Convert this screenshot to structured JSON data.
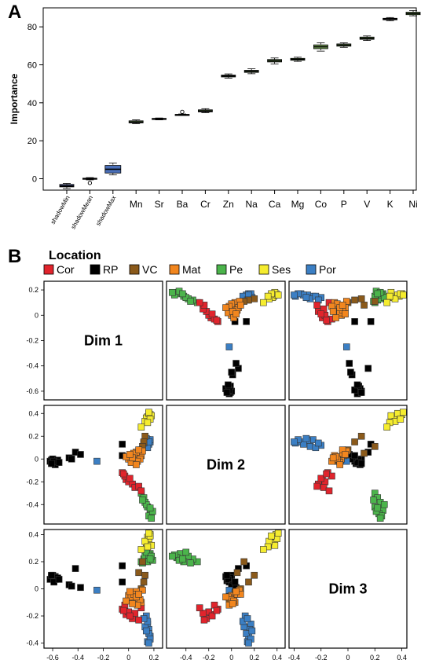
{
  "panel_a_label": "A",
  "panel_b_label": "B",
  "chart_data": [
    {
      "type": "box",
      "ylabel": "Importance",
      "ylim": [
        -6,
        90
      ],
      "yticks": [
        0,
        20,
        40,
        60,
        80
      ],
      "categories": [
        "shadowMin",
        "shadowMean",
        "shadowMax",
        "Mn",
        "Sr",
        "Ba",
        "Cr",
        "Zn",
        "Na",
        "Ca",
        "Mg",
        "Co",
        "P",
        "V",
        "K",
        "Ni"
      ],
      "series": [
        {
          "values": [
            {
              "min": -5.2,
              "q1": -4.3,
              "median": -3.8,
              "q3": -3.0,
              "max": -2.5,
              "color": "#4a5a9a"
            },
            {
              "min": -0.6,
              "q1": -0.3,
              "median": 0.0,
              "q3": 0.3,
              "max": 0.6,
              "color": "#4a5a9a",
              "outliers": [
                -2.2
              ]
            },
            {
              "min": 2.0,
              "q1": 3.0,
              "median": 5.0,
              "q3": 7.0,
              "max": 8.2,
              "color": "#4a6fb8"
            },
            {
              "min": 29.0,
              "q1": 29.4,
              "median": 29.9,
              "q3": 30.5,
              "max": 31.0,
              "color": "#7aa85a"
            },
            {
              "min": 31.0,
              "q1": 31.3,
              "median": 31.5,
              "q3": 31.8,
              "max": 32.0,
              "color": "#7aa85a"
            },
            {
              "min": 33.3,
              "q1": 33.5,
              "median": 33.7,
              "q3": 33.9,
              "max": 34.1,
              "color": "#7aa85a",
              "outliers": [
                35.2
              ]
            },
            {
              "min": 34.8,
              "q1": 35.2,
              "median": 35.7,
              "q3": 36.3,
              "max": 36.9,
              "color": "#7aa85a"
            },
            {
              "min": 53.0,
              "q1": 53.6,
              "median": 54.1,
              "q3": 54.6,
              "max": 55.2,
              "color": "#7aa85a"
            },
            {
              "min": 55.3,
              "q1": 56.0,
              "median": 56.6,
              "q3": 57.1,
              "max": 57.9,
              "color": "#7aa85a"
            },
            {
              "min": 60.5,
              "q1": 61.5,
              "median": 62.1,
              "q3": 62.8,
              "max": 63.6,
              "color": "#7aa85a"
            },
            {
              "min": 61.8,
              "q1": 62.4,
              "median": 62.9,
              "q3": 63.4,
              "max": 64.0,
              "color": "#7aa85a"
            },
            {
              "min": 67.2,
              "q1": 68.5,
              "median": 69.5,
              "q3": 70.5,
              "max": 71.6,
              "color": "#7aa85a"
            },
            {
              "min": 69.2,
              "q1": 69.8,
              "median": 70.4,
              "q3": 71.0,
              "max": 71.6,
              "color": "#7aa85a"
            },
            {
              "min": 72.8,
              "q1": 73.4,
              "median": 74.0,
              "q3": 74.6,
              "max": 75.2,
              "color": "#7aa85a"
            },
            {
              "min": 83.2,
              "q1": 83.7,
              "median": 84.1,
              "q3": 84.5,
              "max": 84.9,
              "color": "#7aa85a"
            },
            {
              "min": 85.8,
              "q1": 86.4,
              "median": 87.0,
              "q3": 87.7,
              "max": 88.6,
              "color": "#7aa85a"
            }
          ]
        }
      ]
    },
    {
      "type": "scatter",
      "legend_title": "Location",
      "legend": [
        {
          "name": "Cor",
          "color": "#e1242c"
        },
        {
          "name": "RP",
          "color": "#000000"
        },
        {
          "name": "VC",
          "color": "#8b5a1b"
        },
        {
          "name": "Mat",
          "color": "#f2861e"
        },
        {
          "name": "Pe",
          "color": "#4bb44b"
        },
        {
          "name": "Ses",
          "color": "#f5ec2f"
        },
        {
          "name": "Por",
          "color": "#3b7fc4"
        }
      ],
      "dimension_labels": [
        "Dim 1",
        "Dim 2",
        "Dim 3"
      ],
      "dim_ranges": {
        "dim1": [
          -0.65,
          0.25
        ],
        "dim2": [
          -0.55,
          0.45
        ],
        "dim3": [
          -0.42,
          0.42
        ]
      },
      "ticks": {
        "dim1": [
          -0.6,
          -0.4,
          -0.2,
          0,
          0.2
        ],
        "dim2": [
          -0.4,
          -0.2,
          0,
          0.2,
          0.4
        ],
        "dim3": [
          -0.4,
          -0.2,
          0,
          0.2,
          0.4
        ],
        "dim1_labels": [
          "-0.6",
          "-0.4",
          "-0.2",
          "0",
          "0.2"
        ],
        "dim2_labels": [
          "-0.4",
          "-0.2",
          "0",
          "0.2",
          "0.4"
        ],
        "dim3_labels": [
          "-0.4",
          "-0.2",
          "0",
          "0.2",
          "0.4"
        ]
      },
      "points": [
        {
          "location": "RP",
          "dim1": -0.58,
          "dim2": -0.02,
          "dim3": 0.07
        },
        {
          "location": "RP",
          "dim1": -0.6,
          "dim2": -0.03,
          "dim3": 0.08
        },
        {
          "location": "RP",
          "dim1": -0.61,
          "dim2": -0.01,
          "dim3": 0.09
        },
        {
          "location": "RP",
          "dim1": -0.59,
          "dim2": -0.04,
          "dim3": 0.06
        },
        {
          "location": "RP",
          "dim1": -0.57,
          "dim2": -0.03,
          "dim3": 0.08
        },
        {
          "location": "RP",
          "dim1": -0.62,
          "dim2": -0.02,
          "dim3": 0.07
        },
        {
          "location": "RP",
          "dim1": -0.6,
          "dim2": 0.0,
          "dim3": 0.1
        },
        {
          "location": "RP",
          "dim1": -0.58,
          "dim2": -0.05,
          "dim3": 0.09
        },
        {
          "location": "RP",
          "dim1": -0.56,
          "dim2": -0.01,
          "dim3": 0.08
        },
        {
          "location": "RP",
          "dim1": -0.59,
          "dim2": -0.02,
          "dim3": 0.05
        },
        {
          "location": "RP",
          "dim1": -0.55,
          "dim2": -0.03,
          "dim3": 0.07
        },
        {
          "location": "RP",
          "dim1": -0.61,
          "dim2": -0.04,
          "dim3": 0.1
        },
        {
          "location": "RP",
          "dim1": -0.47,
          "dim2": 0.01,
          "dim3": 0.03
        },
        {
          "location": "RP",
          "dim1": -0.45,
          "dim2": 0.0,
          "dim3": 0.02
        },
        {
          "location": "RP",
          "dim1": -0.42,
          "dim2": 0.06,
          "dim3": 0.15
        },
        {
          "location": "RP",
          "dim1": -0.38,
          "dim2": 0.04,
          "dim3": 0.01
        },
        {
          "location": "RP",
          "dim1": -0.05,
          "dim2": 0.13,
          "dim3": 0.17
        },
        {
          "location": "RP",
          "dim1": -0.05,
          "dim2": 0.03,
          "dim3": 0.05
        },
        {
          "location": "Por",
          "dim1": -0.25,
          "dim2": -0.02,
          "dim3": -0.01
        },
        {
          "location": "Por",
          "dim1": 0.15,
          "dim2": 0.17,
          "dim3": -0.26
        },
        {
          "location": "Por",
          "dim1": 0.16,
          "dim2": 0.16,
          "dim3": -0.3
        },
        {
          "location": "Por",
          "dim1": 0.17,
          "dim2": 0.15,
          "dim3": -0.35
        },
        {
          "location": "Por",
          "dim1": 0.15,
          "dim2": 0.14,
          "dim3": -0.39
        },
        {
          "location": "Por",
          "dim1": 0.14,
          "dim2": 0.12,
          "dim3": -0.2
        },
        {
          "location": "Por",
          "dim1": 0.16,
          "dim2": 0.13,
          "dim3": -0.33
        },
        {
          "location": "Por",
          "dim1": 0.13,
          "dim2": 0.11,
          "dim3": -0.28
        },
        {
          "location": "Por",
          "dim1": 0.17,
          "dim2": 0.17,
          "dim3": -0.37
        },
        {
          "location": "Por",
          "dim1": 0.15,
          "dim2": 0.1,
          "dim3": -0.24
        },
        {
          "location": "Por",
          "dim1": 0.14,
          "dim2": 0.18,
          "dim3": -0.31
        },
        {
          "location": "Por",
          "dim1": 0.16,
          "dim2": 0.15,
          "dim3": -0.4
        },
        {
          "location": "Por",
          "dim1": 0.12,
          "dim2": 0.14,
          "dim3": -0.22
        },
        {
          "location": "Pe",
          "dim1": 0.1,
          "dim2": -0.3,
          "dim3": 0.2
        },
        {
          "location": "Pe",
          "dim1": 0.12,
          "dim2": -0.34,
          "dim3": 0.22
        },
        {
          "location": "Pe",
          "dim1": 0.13,
          "dim2": -0.38,
          "dim3": 0.24
        },
        {
          "location": "Pe",
          "dim1": 0.15,
          "dim2": -0.42,
          "dim3": 0.2
        },
        {
          "location": "Pe",
          "dim1": 0.17,
          "dim2": -0.45,
          "dim3": 0.26
        },
        {
          "location": "Pe",
          "dim1": 0.18,
          "dim2": -0.48,
          "dim3": 0.23
        },
        {
          "location": "Pe",
          "dim1": 0.16,
          "dim2": -0.5,
          "dim3": 0.25
        },
        {
          "location": "Pe",
          "dim1": 0.19,
          "dim2": -0.46,
          "dim3": 0.21
        },
        {
          "location": "Pe",
          "dim1": 0.14,
          "dim2": -0.4,
          "dim3": 0.27
        },
        {
          "location": "Pe",
          "dim1": 0.18,
          "dim2": -0.52,
          "dim3": 0.24
        },
        {
          "location": "Pe",
          "dim1": 0.11,
          "dim2": -0.36,
          "dim3": 0.19
        },
        {
          "location": "Pe",
          "dim1": 0.17,
          "dim2": -0.43,
          "dim3": 0.22
        },
        {
          "location": "Ses",
          "dim1": 0.15,
          "dim2": 0.37,
          "dim3": 0.38
        },
        {
          "location": "Ses",
          "dim1": 0.17,
          "dim2": 0.39,
          "dim3": 0.4
        },
        {
          "location": "Ses",
          "dim1": 0.14,
          "dim2": 0.36,
          "dim3": 0.34
        },
        {
          "location": "Ses",
          "dim1": 0.16,
          "dim2": 0.4,
          "dim3": 0.37
        },
        {
          "location": "Ses",
          "dim1": 0.18,
          "dim2": 0.38,
          "dim3": 0.32
        },
        {
          "location": "Ses",
          "dim1": 0.13,
          "dim2": 0.33,
          "dim3": 0.35
        },
        {
          "location": "Ses",
          "dim1": 0.17,
          "dim2": 0.35,
          "dim3": 0.39
        },
        {
          "location": "Ses",
          "dim1": 0.15,
          "dim2": 0.32,
          "dim3": 0.31
        },
        {
          "location": "Ses",
          "dim1": 0.1,
          "dim2": 0.28,
          "dim3": 0.29
        },
        {
          "location": "Ses",
          "dim1": 0.16,
          "dim2": 0.41,
          "dim3": 0.41
        },
        {
          "location": "Cor",
          "dim1": -0.05,
          "dim2": -0.12,
          "dim3": -0.15
        },
        {
          "location": "Cor",
          "dim1": -0.02,
          "dim2": -0.18,
          "dim3": -0.19
        },
        {
          "location": "Cor",
          "dim1": 0.0,
          "dim2": -0.2,
          "dim3": -0.17
        },
        {
          "location": "Cor",
          "dim1": 0.03,
          "dim2": -0.22,
          "dim3": -0.22
        },
        {
          "location": "Cor",
          "dim1": -0.03,
          "dim2": -0.15,
          "dim3": -0.12
        },
        {
          "location": "Cor",
          "dim1": 0.05,
          "dim2": -0.25,
          "dim3": -0.18
        },
        {
          "location": "Cor",
          "dim1": 0.01,
          "dim2": -0.17,
          "dim3": -0.2
        },
        {
          "location": "Cor",
          "dim1": -0.04,
          "dim2": -0.13,
          "dim3": -0.16
        },
        {
          "location": "Cor",
          "dim1": 0.08,
          "dim2": -0.24,
          "dim3": -0.23
        },
        {
          "location": "Cor",
          "dim1": 0.1,
          "dim2": -0.28,
          "dim3": -0.14
        },
        {
          "location": "VC",
          "dim1": 0.13,
          "dim2": 0.2,
          "dim3": 0.1
        },
        {
          "location": "VC",
          "dim1": 0.1,
          "dim2": 0.08,
          "dim3": 0.0
        },
        {
          "location": "VC",
          "dim1": 0.05,
          "dim2": 0.03,
          "dim3": -0.03
        },
        {
          "location": "VC",
          "dim1": 0.12,
          "dim2": 0.15,
          "dim3": 0.05
        },
        {
          "location": "VC",
          "dim1": 0.08,
          "dim2": 0.05,
          "dim3": 0.12
        },
        {
          "location": "VC",
          "dim1": 0.03,
          "dim2": -0.02,
          "dim3": -0.08
        },
        {
          "location": "VC",
          "dim1": 0.11,
          "dim2": 0.11,
          "dim3": 0.2
        },
        {
          "location": "VC",
          "dim1": 0.0,
          "dim2": 0.0,
          "dim3": -0.05
        },
        {
          "location": "Mat",
          "dim1": 0.0,
          "dim2": 0.0,
          "dim3": -0.05
        },
        {
          "location": "Mat",
          "dim1": 0.05,
          "dim2": 0.02,
          "dim3": -0.07
        },
        {
          "location": "Mat",
          "dim1": 0.08,
          "dim2": 0.04,
          "dim3": -0.03
        },
        {
          "location": "Mat",
          "dim1": 0.1,
          "dim2": 0.03,
          "dim3": -0.1
        },
        {
          "location": "Mat",
          "dim1": 0.02,
          "dim2": -0.03,
          "dim3": -0.06
        },
        {
          "location": "Mat",
          "dim1": 0.06,
          "dim2": 0.06,
          "dim3": -0.02
        },
        {
          "location": "Mat",
          "dim1": 0.09,
          "dim2": 0.0,
          "dim3": -0.08
        },
        {
          "location": "Mat",
          "dim1": 0.04,
          "dim2": 0.05,
          "dim3": -0.04
        },
        {
          "location": "Mat",
          "dim1": -0.02,
          "dim2": 0.02,
          "dim3": -0.09
        },
        {
          "location": "Mat",
          "dim1": 0.07,
          "dim2": -0.02,
          "dim3": -0.12
        },
        {
          "location": "Mat",
          "dim1": 0.11,
          "dim2": 0.07,
          "dim3": -0.01
        },
        {
          "location": "Mat",
          "dim1": 0.03,
          "dim2": 0.01,
          "dim3": -0.11
        },
        {
          "location": "Mat",
          "dim1": 0.06,
          "dim2": -0.05,
          "dim3": -0.06
        },
        {
          "location": "Mat",
          "dim1": 0.08,
          "dim2": 0.08,
          "dim3": -0.04
        },
        {
          "location": "Mat",
          "dim1": 0.01,
          "dim2": 0.04,
          "dim3": -0.02
        }
      ]
    }
  ]
}
